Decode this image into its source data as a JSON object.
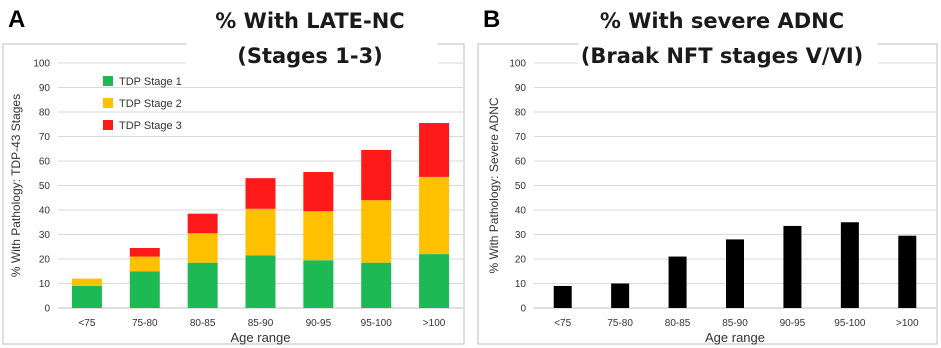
{
  "chart_data": [
    {
      "panel": "A",
      "type": "bar",
      "stacked": true,
      "title_lines": [
        "% With LATE-NC",
        "(Stages 1-3)"
      ],
      "xlabel": "Age range",
      "ylabel": "% With Pathology: TDP-43 Stages",
      "ylim": [
        0,
        100
      ],
      "yticks": [
        0,
        10,
        20,
        30,
        40,
        50,
        60,
        70,
        80,
        90,
        100
      ],
      "categories": [
        "<75",
        "75-80",
        "80-85",
        "85-90",
        "90-95",
        "95-100",
        ">100"
      ],
      "series": [
        {
          "name": "TDP Stage 1",
          "color": "#1db954",
          "values": [
            9,
            15,
            18.5,
            21.5,
            19.5,
            18.5,
            22
          ]
        },
        {
          "name": "TDP Stage 2",
          "color": "#ffc000",
          "values": [
            3,
            6,
            12,
            19,
            20,
            25.5,
            31.5
          ]
        },
        {
          "name": "TDP Stage 3",
          "color": "#ff1a1a",
          "values": [
            0,
            3.5,
            8,
            12.5,
            16,
            20.5,
            22
          ]
        }
      ],
      "grid": true,
      "legend": "top-left"
    },
    {
      "panel": "B",
      "type": "bar",
      "title_lines": [
        "% With severe ADNC",
        "(Braak NFT stages V/VI)"
      ],
      "xlabel": "Age range",
      "ylabel": "% With Pathology: Severe ADNC",
      "ylim": [
        0,
        100
      ],
      "yticks": [
        0,
        10,
        20,
        30,
        40,
        50,
        60,
        70,
        80,
        90,
        100
      ],
      "categories": [
        "<75",
        "75-80",
        "80-85",
        "85-90",
        "90-95",
        "95-100",
        ">100"
      ],
      "series": [
        {
          "color": "#000000",
          "values": [
            9,
            10,
            21,
            28,
            33.5,
            35,
            29.5
          ]
        }
      ],
      "grid": true
    }
  ]
}
